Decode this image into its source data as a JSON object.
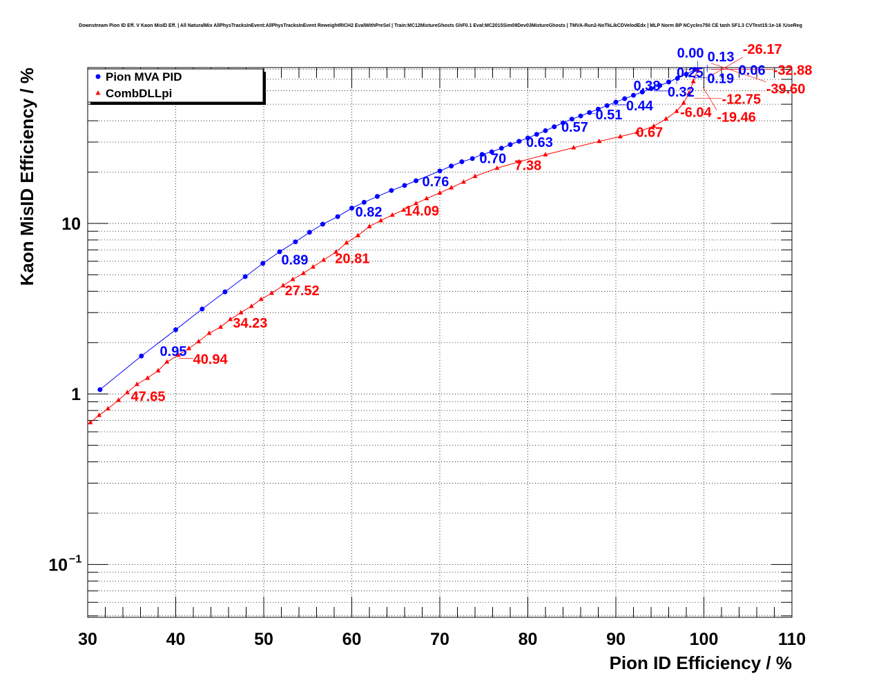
{
  "chart_data": {
    "type": "scatter",
    "title": "Downstream Pion ID Eff. V Kaon MisID Eff. | All NaturalMix AllPhysTracksInEvent:AllPhysTracksInEvent ReweightRICH2 EvalWithPreSel | Train:MC12MixtureGhosts GhF0.1 Eval:MC2015Sim09Dev03MixtureGhosts | TMVA-Run2-NoTkLikCDVelodEdx | MLP Norm BP NCycles750 CE tanh SF1.3 CVTest15:1e-16 !UseReg",
    "xlabel": "Pion ID Efficiency / %",
    "ylabel": "Kaon MisID Efficiency / %",
    "xlim": [
      30,
      110
    ],
    "ylim": [
      0.049,
      82
    ],
    "yscale": "log",
    "x_ticks": [
      "30",
      "40",
      "50",
      "60",
      "70",
      "80",
      "90",
      "100",
      "110"
    ],
    "y_ticks": [
      {
        "value": 1,
        "label": "1"
      },
      {
        "value": 10,
        "label": "10"
      },
      {
        "value": 0.1,
        "label": "10",
        "sup": "−1"
      }
    ],
    "grid": true,
    "legend": {
      "placement": "top-left",
      "entries": [
        "Pion MVA PID",
        "CombDLLpi"
      ]
    },
    "series": [
      {
        "name": "Pion MVA PID",
        "color": "#0000ff",
        "marker": "circle",
        "x": [
          31.4,
          36.1,
          40,
          43,
          45.6,
          47.9,
          49.9,
          51.8,
          53.6,
          55.2,
          56.7,
          58.4,
          60,
          61.4,
          62.9,
          64.5,
          66,
          67.3,
          70,
          71.3,
          72.5,
          73.7,
          74.8,
          75.9,
          77,
          78,
          79,
          80,
          81,
          82,
          83,
          84,
          85,
          86,
          87,
          88,
          89,
          90,
          91,
          92,
          93,
          94,
          95,
          96,
          97,
          98,
          99
        ],
        "y": [
          1.06,
          1.67,
          2.38,
          3.15,
          3.97,
          4.88,
          5.83,
          6.82,
          7.8,
          8.87,
          9.9,
          10.96,
          12.3,
          13.3,
          14.4,
          15.6,
          16.7,
          17.8,
          20.3,
          21.7,
          23.0,
          24.0,
          25.4,
          26.3,
          27.6,
          29.0,
          30.3,
          31.7,
          33.3,
          35.0,
          36.9,
          38.9,
          40.9,
          42.7,
          44.7,
          46.8,
          49.1,
          51.5,
          53.9,
          56.4,
          59.0,
          61.7,
          64.4,
          67.5,
          71.0,
          75.0,
          80.0
        ]
      },
      {
        "name": "CombDLLpi",
        "color": "#ff0000",
        "marker": "triangle",
        "x": [
          30.3,
          31.3,
          32.3,
          33.5,
          34.5,
          35.6,
          36.8,
          38,
          39,
          40.3,
          41.5,
          42.6,
          43.8,
          45.1,
          46.2,
          47.4,
          48.6,
          49.7,
          50.9,
          52.2,
          53.3,
          54.5,
          55.6,
          56.8,
          58.2,
          59.4,
          60.7,
          62,
          63.3,
          64.6,
          65.9,
          67.3,
          68.5,
          70,
          71.3,
          72.7,
          74,
          76.5,
          79,
          82,
          85.2,
          88.1,
          90.5,
          92.4,
          94.3,
          95.7,
          96.9,
          97.7,
          98.3,
          98.8,
          99.3
        ],
        "y": [
          0.68,
          0.75,
          0.82,
          0.92,
          1.02,
          1.14,
          1.24,
          1.37,
          1.54,
          1.69,
          1.85,
          2.03,
          2.27,
          2.47,
          2.74,
          3.0,
          3.27,
          3.59,
          3.9,
          4.32,
          4.7,
          5.1,
          5.56,
          6.1,
          6.8,
          7.7,
          8.5,
          9.6,
          10.4,
          11.2,
          12.0,
          13.1,
          14.0,
          15.1,
          16.2,
          17.5,
          18.9,
          21.1,
          23.0,
          25.3,
          27.8,
          30.3,
          32.3,
          34.2,
          37.2,
          41,
          45.5,
          50.8,
          58,
          68,
          80
        ]
      }
    ],
    "annotations": [
      {
        "text": "0.95",
        "x": 38.2,
        "y": 1.8,
        "series": 0
      },
      {
        "text": "0.89",
        "x": 52,
        "y": 6.2,
        "series": 0
      },
      {
        "text": "0.82",
        "x": 60.4,
        "y": 11.8,
        "series": 0
      },
      {
        "text": "0.76",
        "x": 68,
        "y": 17.8,
        "series": 0
      },
      {
        "text": "0.70",
        "x": 74.5,
        "y": 24.3,
        "series": 0
      },
      {
        "text": "0.63",
        "x": 79.8,
        "y": 30.3,
        "series": 0
      },
      {
        "text": "0.57",
        "x": 83.8,
        "y": 37.2,
        "series": 0
      },
      {
        "text": "0.51",
        "x": 86.9,
        "y": 44,
        "series": 0
      },
      {
        "text": "0.44",
        "x": 89.6,
        "y": 49.6,
        "series": 0
      },
      {
        "text": "0.38",
        "x": 92,
        "y": 55,
        "series": 0
      },
      {
        "text": "0.32",
        "x": 94.3,
        "y": 59.8,
        "series": 0
      },
      {
        "text": "0.25",
        "x": 96.9,
        "y": 65.7,
        "series": 0
      },
      {
        "text": "0.19",
        "x": 98.8,
        "y": 71.5,
        "series": 0
      },
      {
        "text": "0.13",
        "x": 100.4,
        "y": 77,
        "series": 0
      },
      {
        "text": "0.06",
        "x": 100.8,
        "y": 80,
        "series": 0
      },
      {
        "text": "0.00",
        "x": 99.3,
        "y": 81,
        "series": 0
      },
      {
        "text": "47.65",
        "x": 34.9,
        "y": 0.98,
        "series": 1
      },
      {
        "text": "40.94",
        "x": 40.4,
        "y": 1.62,
        "series": 1
      },
      {
        "text": "34.23",
        "x": 46.5,
        "y": 2.64,
        "series": 1
      },
      {
        "text": "27.52",
        "x": 52.4,
        "y": 4.09,
        "series": 1
      },
      {
        "text": "20.81",
        "x": 58.1,
        "y": 6.3,
        "series": 1
      },
      {
        "text": "14.09",
        "x": 66,
        "y": 12.0,
        "series": 1
      },
      {
        "text": "7.38",
        "x": 78.5,
        "y": 22.2,
        "series": 1
      },
      {
        "text": "0.67",
        "x": 92.3,
        "y": 34.7,
        "series": 1
      },
      {
        "text": "-6.04",
        "x": 97.3,
        "y": 45.4,
        "series": 1
      },
      {
        "text": "-12.75",
        "x": 98.9,
        "y": 54.2,
        "series": 1
      },
      {
        "text": "-19.46",
        "x": 99.9,
        "y": 62.8,
        "series": 1
      },
      {
        "text": "-26.17",
        "x": 100.5,
        "y": 72,
        "series": 1
      },
      {
        "text": "-32.88",
        "x": 100.8,
        "y": 80,
        "series": 1
      },
      {
        "text": "-39.60",
        "x": 100.8,
        "y": 87,
        "series": 1
      }
    ]
  }
}
